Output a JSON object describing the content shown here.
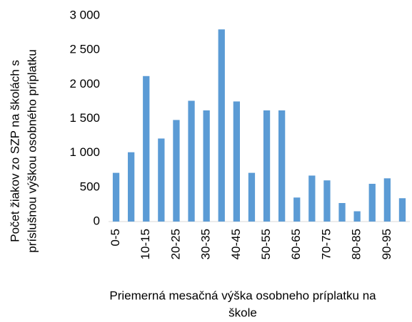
{
  "chart_data": {
    "type": "bar",
    "x_label": [
      "Priemerná mesačná výška osobneho príplatku na",
      "škole"
    ],
    "y_label": [
      "Počet žiakov zo SZP na školách s",
      "príslušnou výškou osobného príplatku"
    ],
    "categories": [
      "0-5",
      null,
      "10-15",
      null,
      "20-25",
      null,
      "30-35",
      null,
      "40-45",
      null,
      "50-55",
      null,
      "60-65",
      null,
      "70-75",
      null,
      "80-85",
      null,
      "90-95",
      null
    ],
    "values": [
      710,
      1010,
      2120,
      1210,
      1480,
      1760,
      1620,
      2800,
      1750,
      710,
      1620,
      1620,
      350,
      670,
      600,
      270,
      150,
      550,
      630,
      340
    ],
    "color": "#5b9bd5",
    "ylim": [
      0,
      3000
    ],
    "yticks": [
      0,
      500,
      {
        "value": 1000,
        "label": "1 000"
      },
      {
        "value": 1500,
        "label": "1 500"
      },
      {
        "value": 2000,
        "label": "2 000"
      },
      {
        "value": 2500,
        "label": "2 500"
      },
      {
        "value": 3000,
        "label": "3 000"
      }
    ],
    "grid": false
  }
}
